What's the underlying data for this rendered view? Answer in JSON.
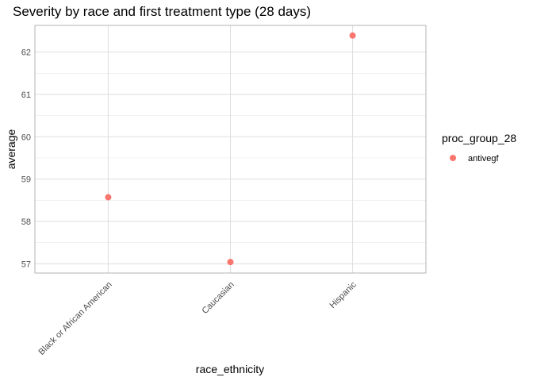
{
  "chart_data": {
    "type": "scatter",
    "title": "Severity by race and first treatment type (28 days)",
    "xlabel": "race_ethnicity",
    "ylabel": "average",
    "categories": [
      "Black or African American",
      "Caucasian",
      "Hispanic"
    ],
    "yticks": [
      "57",
      "58",
      "59",
      "60",
      "61",
      "62"
    ],
    "ylim": [
      56.78,
      62.63
    ],
    "grid": true,
    "legend_position": "right",
    "legend_title": "proc_group_28",
    "series": [
      {
        "name": "antivegf",
        "color": "#f8766d",
        "values": [
          58.57,
          57.04,
          62.39
        ]
      }
    ]
  }
}
